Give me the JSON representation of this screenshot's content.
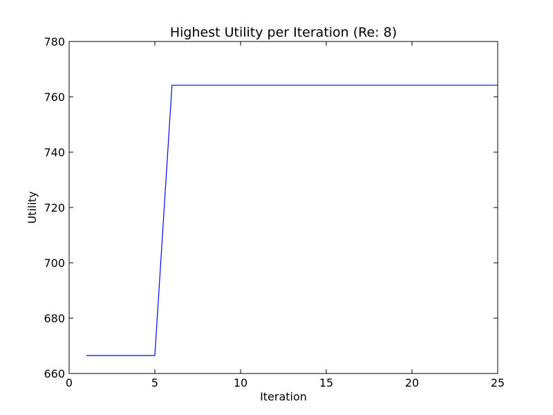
{
  "chart_data": {
    "type": "line",
    "title": "Highest Utility per Iteration (Re: 8)",
    "xlabel": "Iteration",
    "ylabel": "Utility",
    "xlim": [
      0,
      25
    ],
    "ylim": [
      660,
      780
    ],
    "xticks": [
      0,
      5,
      10,
      15,
      20,
      25
    ],
    "yticks": [
      660,
      680,
      700,
      720,
      740,
      760,
      780
    ],
    "grid": false,
    "series": [
      {
        "color": "#0000ff",
        "x": [
          1,
          2,
          3,
          4,
          5,
          6,
          7,
          8,
          9,
          10,
          11,
          12,
          13,
          14,
          15,
          16,
          17,
          18,
          19,
          20,
          21,
          22,
          23,
          24,
          25
        ],
        "y": [
          666.5,
          666.5,
          666.5,
          666.5,
          666.5,
          764.2,
          764.2,
          764.2,
          764.2,
          764.2,
          764.2,
          764.2,
          764.2,
          764.2,
          764.2,
          764.2,
          764.2,
          764.2,
          764.2,
          764.2,
          764.2,
          764.2,
          764.2,
          764.2,
          764.2
        ]
      }
    ]
  }
}
